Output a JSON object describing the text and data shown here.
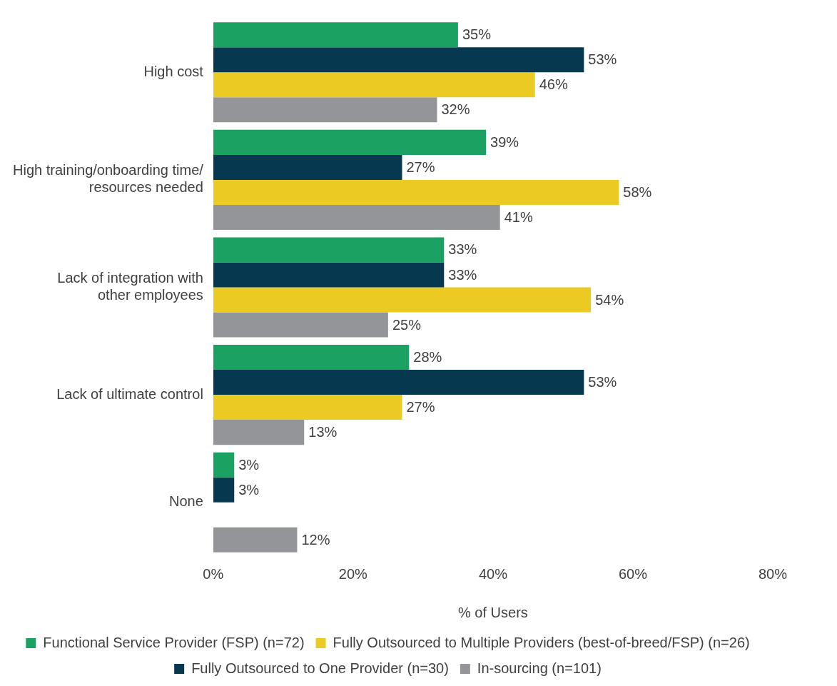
{
  "chart_data": {
    "type": "bar",
    "orientation": "horizontal",
    "xlabel": "% of Users",
    "categories": [
      "High cost",
      "High training/onboarding time/\nresources needed",
      "Lack of integration with\nother employees",
      "Lack of ultimate control",
      "None"
    ],
    "series": [
      {
        "name": "Functional Service Provider (FSP) (n=72)",
        "color": "#1ba262",
        "values": [
          35,
          39,
          33,
          28,
          3
        ],
        "value_labels": [
          "35%",
          "39%",
          "33%",
          "28%",
          "3%"
        ]
      },
      {
        "name": "Fully Outsourced to One Provider (n=30)",
        "color": "#06384f",
        "values": [
          53,
          27,
          33,
          53,
          3
        ],
        "value_labels": [
          "53%",
          "27%",
          "33%",
          "53%",
          "3%"
        ]
      },
      {
        "name": "Fully Outsourced to Multiple Providers (best-of-breed/FSP) (n=26)",
        "color": "#ecca24",
        "values": [
          46,
          58,
          54,
          27,
          null
        ],
        "value_labels": [
          "46%",
          "58%",
          "54%",
          "27%",
          null
        ]
      },
      {
        "name": "In-sourcing (n=101)",
        "color": "#949598",
        "values": [
          32,
          41,
          25,
          13,
          12
        ],
        "value_labels": [
          "32%",
          "41%",
          "25%",
          "13%",
          "12%"
        ]
      }
    ],
    "xlim": [
      0,
      80
    ],
    "xticks": [
      {
        "value": 0,
        "label": "0%"
      },
      {
        "value": 20,
        "label": "20%"
      },
      {
        "value": 40,
        "label": "40%"
      },
      {
        "value": 60,
        "label": "60%"
      },
      {
        "value": 80,
        "label": "80%"
      }
    ],
    "grid": false,
    "legend": "bottom"
  }
}
